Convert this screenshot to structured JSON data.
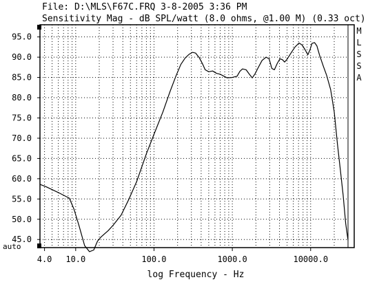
{
  "header": {
    "file_line": "File: D:\\MLS\\F67C.FRQ 3-8-2005 3:36 PM",
    "title_line": "Sensitivity Mag - dB SPL/watt (8.0 ohms, @1.00 M) (0.33 oct)"
  },
  "side_label": [
    "M",
    "L",
    "S",
    "S",
    "A"
  ],
  "chart_data": {
    "type": "line",
    "title": "Sensitivity Mag - dB SPL/watt (8.0 ohms, @1.00 M) (0.33 oct)",
    "xlabel": "log Frequency - Hz",
    "ylabel": "",
    "x_scale": "log",
    "xlim": [
      3.5,
      30000
    ],
    "ylim": [
      43,
      98
    ],
    "x_ticks": [
      4.0,
      10.0,
      100.0,
      1000.0,
      10000.0
    ],
    "x_tick_labels": [
      "4.0",
      "10.0",
      "100.0",
      "1000.0",
      "10000.0"
    ],
    "y_ticks": [
      95,
      90,
      85,
      80,
      75,
      70,
      65,
      60,
      55,
      50,
      45
    ],
    "y_tick_labels": [
      "95.0",
      "90.0",
      "85.0",
      "80.0",
      "75.0",
      "70.0",
      "65.0",
      "60.0",
      "55.0",
      "50.0",
      "45.0"
    ],
    "y_bottom_label": "auto",
    "grid": true,
    "series": [
      {
        "color": "#000000",
        "points": [
          [
            3.5,
            58.6
          ],
          [
            4.2,
            58.0
          ],
          [
            6,
            56.6
          ],
          [
            8.3,
            55.2
          ],
          [
            9.5,
            52.5
          ],
          [
            11,
            48.5
          ],
          [
            13,
            43.5
          ],
          [
            15,
            42.0
          ],
          [
            17,
            42.4
          ],
          [
            19,
            44.6
          ],
          [
            21,
            45.6
          ],
          [
            26,
            47.2
          ],
          [
            30,
            48.5
          ],
          [
            38,
            51.0
          ],
          [
            48,
            55.0
          ],
          [
            60,
            59.3
          ],
          [
            70,
            63.0
          ],
          [
            80,
            66.2
          ],
          [
            100,
            71.0
          ],
          [
            130,
            76.5
          ],
          [
            160,
            81.5
          ],
          [
            190,
            85.3
          ],
          [
            220,
            88.2
          ],
          [
            250,
            89.8
          ],
          [
            280,
            90.7
          ],
          [
            310,
            91.2
          ],
          [
            340,
            91.0
          ],
          [
            380,
            89.8
          ],
          [
            420,
            88.2
          ],
          [
            450,
            86.9
          ],
          [
            500,
            86.4
          ],
          [
            560,
            86.6
          ],
          [
            630,
            86.0
          ],
          [
            700,
            85.8
          ],
          [
            780,
            85.3
          ],
          [
            860,
            84.9
          ],
          [
            1000,
            85.0
          ],
          [
            1150,
            85.3
          ],
          [
            1250,
            86.5
          ],
          [
            1350,
            87.1
          ],
          [
            1500,
            86.9
          ],
          [
            1650,
            85.8
          ],
          [
            1800,
            84.9
          ],
          [
            1950,
            85.9
          ],
          [
            2150,
            87.5
          ],
          [
            2400,
            89.2
          ],
          [
            2700,
            90.0
          ],
          [
            2950,
            89.6
          ],
          [
            3200,
            87.2
          ],
          [
            3450,
            86.9
          ],
          [
            3750,
            88.5
          ],
          [
            4050,
            89.6
          ],
          [
            4350,
            89.4
          ],
          [
            4650,
            88.8
          ],
          [
            5000,
            89.5
          ],
          [
            5600,
            91.0
          ],
          [
            6300,
            92.5
          ],
          [
            7100,
            93.5
          ],
          [
            7800,
            93.0
          ],
          [
            8500,
            91.8
          ],
          [
            9200,
            90.6
          ],
          [
            9800,
            91.8
          ],
          [
            10400,
            93.4
          ],
          [
            11200,
            93.6
          ],
          [
            12000,
            92.8
          ],
          [
            13000,
            90.5
          ],
          [
            14500,
            87.8
          ],
          [
            16000,
            85.5
          ],
          [
            18000,
            82.0
          ],
          [
            20000,
            76.5
          ],
          [
            22000,
            68.5
          ],
          [
            24000,
            62.0
          ],
          [
            26000,
            56.0
          ],
          [
            28000,
            49.0
          ],
          [
            30000,
            44.8
          ]
        ]
      }
    ]
  }
}
